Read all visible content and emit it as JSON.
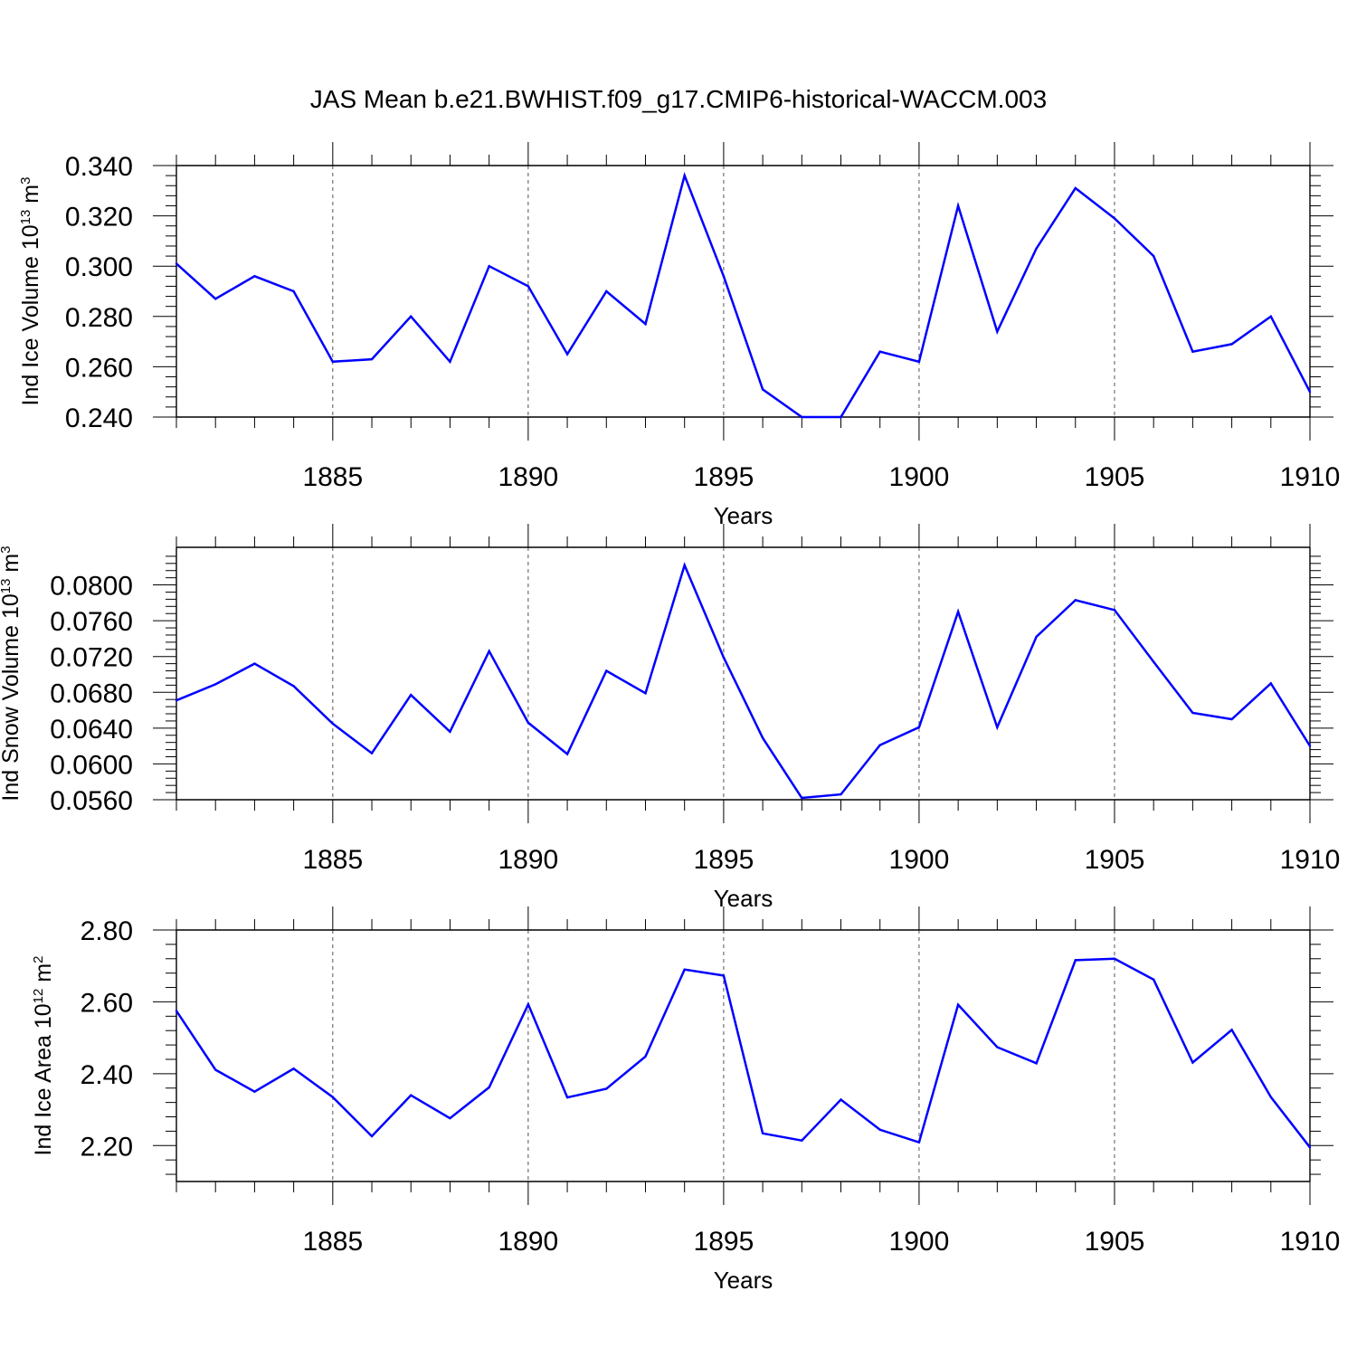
{
  "chart_data": {
    "type": "line",
    "title": "JAS Mean b.e21.BWHIST.f09_g17.CMIP6-historical-WACCM.003",
    "series_color": "#0000ff",
    "years": [
      1881,
      1882,
      1883,
      1884,
      1885,
      1886,
      1887,
      1888,
      1889,
      1890,
      1891,
      1892,
      1893,
      1894,
      1895,
      1896,
      1897,
      1898,
      1899,
      1900,
      1901,
      1902,
      1903,
      1904,
      1905,
      1906,
      1907,
      1908,
      1909,
      1910
    ],
    "xlim": [
      1881,
      1910
    ],
    "x_ticks": [
      1885,
      1890,
      1895,
      1900,
      1905,
      1910
    ],
    "x_tick_labels": [
      "1885",
      "1890",
      "1895",
      "1900",
      "1905",
      "1910"
    ],
    "grid": "dashed vertical lines at labeled year ticks",
    "panels": [
      {
        "name": "ice-volume",
        "ylabel": "Ind Ice Volume 10",
        "ylabel_exponent": "13",
        "ylabel_unit": "m",
        "ylabel_unit_exponent": "3",
        "xlabel": "Years",
        "ylim": [
          0.24,
          0.34
        ],
        "y_ticks": [
          0.24,
          0.26,
          0.28,
          0.3,
          0.32,
          0.34
        ],
        "y_tick_labels": [
          "0.240",
          "0.260",
          "0.280",
          "0.300",
          "0.320",
          "0.340"
        ],
        "values": [
          0.301,
          0.287,
          0.296,
          0.29,
          0.262,
          0.263,
          0.28,
          0.262,
          0.3,
          0.292,
          0.265,
          0.29,
          0.277,
          0.336,
          0.296,
          0.251,
          0.24,
          0.24,
          0.266,
          0.262,
          0.324,
          0.274,
          0.307,
          0.331,
          0.319,
          0.304,
          0.266,
          0.269,
          0.28,
          0.25
        ]
      },
      {
        "name": "snow-volume",
        "ylabel": "Ind Snow Volume 10",
        "ylabel_exponent": "13",
        "ylabel_unit": "m",
        "ylabel_unit_exponent": "3",
        "xlabel": "Years",
        "ylim": [
          0.056,
          0.0842
        ],
        "y_ticks": [
          0.056,
          0.06,
          0.064,
          0.068,
          0.072,
          0.076,
          0.08
        ],
        "y_tick_labels": [
          "0.0560",
          "0.0600",
          "0.0640",
          "0.0680",
          "0.0720",
          "0.0760",
          "0.0800"
        ],
        "values": [
          0.0671,
          0.0689,
          0.0712,
          0.0687,
          0.0645,
          0.0612,
          0.0677,
          0.0636,
          0.0726,
          0.0646,
          0.0611,
          0.0704,
          0.0679,
          0.0822,
          0.0719,
          0.0629,
          0.0562,
          0.0566,
          0.0621,
          0.0641,
          0.077,
          0.0641,
          0.0742,
          0.0783,
          0.0772,
          0.0714,
          0.0657,
          0.065,
          0.069,
          0.062
        ]
      },
      {
        "name": "ice-area",
        "ylabel": "Ind Ice Area 10",
        "ylabel_exponent": "12",
        "ylabel_unit": "m",
        "ylabel_unit_exponent": "2",
        "xlabel": "Years",
        "ylim": [
          2.1,
          2.8
        ],
        "y_ticks": [
          2.2,
          2.4,
          2.6,
          2.8
        ],
        "y_tick_labels": [
          "2.20",
          "2.40",
          "2.60",
          "2.80"
        ],
        "values": [
          2.575,
          2.411,
          2.35,
          2.414,
          2.335,
          2.226,
          2.34,
          2.276,
          2.362,
          2.593,
          2.334,
          2.358,
          2.448,
          2.69,
          2.673,
          2.234,
          2.214,
          2.328,
          2.244,
          2.209,
          2.592,
          2.474,
          2.429,
          2.716,
          2.72,
          2.662,
          2.431,
          2.522,
          2.335,
          2.195
        ]
      }
    ]
  }
}
